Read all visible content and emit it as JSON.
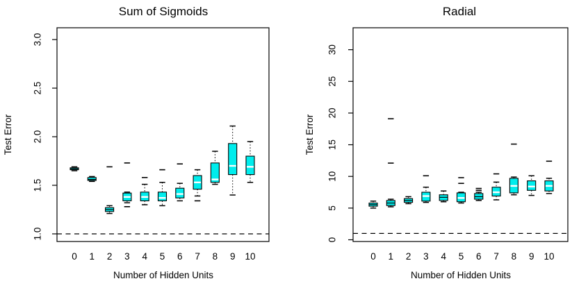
{
  "style": {
    "box_fill": "#00EDED",
    "median_color": "#FFFFFF",
    "line_color": "#000000",
    "background": "#FFFFFF"
  },
  "chart_data": [
    {
      "type": "boxplot",
      "title": "Sum of Sigmoids",
      "xlabel": "Number of Hidden Units",
      "ylabel": "Test Error",
      "x_categories": [
        "0",
        "1",
        "2",
        "3",
        "4",
        "5",
        "6",
        "7",
        "8",
        "9",
        "10"
      ],
      "y_tick_labels": [
        "1.0",
        "1.5",
        "2.0",
        "2.5",
        "3.0"
      ],
      "ylim": [
        0.92,
        3.05
      ],
      "grid": false,
      "legend": "none",
      "reference_line_y": 1.0,
      "reference_line_style": "dashed",
      "boxes": [
        {
          "hidden_units": 0,
          "whisker_low": 1.65,
          "q1": 1.66,
          "median": 1.67,
          "q3": 1.68,
          "whisker_high": 1.69,
          "outliers": []
        },
        {
          "hidden_units": 1,
          "whisker_low": 1.54,
          "q1": 1.55,
          "median": 1.56,
          "q3": 1.58,
          "whisker_high": 1.59,
          "outliers": []
        },
        {
          "hidden_units": 2,
          "whisker_low": 1.21,
          "q1": 1.23,
          "median": 1.25,
          "q3": 1.27,
          "whisker_high": 1.29,
          "outliers": [
            1.69
          ]
        },
        {
          "hidden_units": 3,
          "whisker_low": 1.32,
          "q1": 1.34,
          "median": 1.38,
          "q3": 1.42,
          "whisker_high": 1.43,
          "outliers": [
            1.73,
            1.28
          ]
        },
        {
          "hidden_units": 4,
          "whisker_low": 1.3,
          "q1": 1.34,
          "median": 1.38,
          "q3": 1.43,
          "whisker_high": 1.51,
          "outliers": [
            1.58
          ]
        },
        {
          "hidden_units": 5,
          "whisker_low": 1.29,
          "q1": 1.34,
          "median": 1.37,
          "q3": 1.43,
          "whisker_high": 1.53,
          "outliers": [
            1.66
          ]
        },
        {
          "hidden_units": 6,
          "whisker_low": 1.34,
          "q1": 1.37,
          "median": 1.41,
          "q3": 1.47,
          "whisker_high": 1.52,
          "outliers": [
            1.72
          ]
        },
        {
          "hidden_units": 7,
          "whisker_low": 1.39,
          "q1": 1.46,
          "median": 1.53,
          "q3": 1.6,
          "whisker_high": 1.66,
          "outliers": [
            1.34
          ]
        },
        {
          "hidden_units": 8,
          "whisker_low": 1.51,
          "q1": 1.53,
          "median": 1.56,
          "q3": 1.73,
          "whisker_high": 1.85,
          "outliers": []
        },
        {
          "hidden_units": 9,
          "whisker_low": 1.4,
          "q1": 1.61,
          "median": 1.7,
          "q3": 1.93,
          "whisker_high": 2.11,
          "outliers": []
        },
        {
          "hidden_units": 10,
          "whisker_low": 1.53,
          "q1": 1.61,
          "median": 1.69,
          "q3": 1.8,
          "whisker_high": 1.95,
          "outliers": []
        }
      ]
    },
    {
      "type": "boxplot",
      "title": "Radial",
      "xlabel": "Number of Hidden Units",
      "ylabel": "Test Error",
      "x_categories": [
        "0",
        "1",
        "2",
        "3",
        "4",
        "5",
        "6",
        "7",
        "8",
        "9",
        "10"
      ],
      "y_tick_labels": [
        "0",
        "5",
        "10",
        "15",
        "20",
        "25",
        "30"
      ],
      "ylim": [
        0,
        33.5
      ],
      "grid": false,
      "legend": "none",
      "reference_line_y": 1.0,
      "reference_line_style": "dashed",
      "boxes": [
        {
          "hidden_units": 0,
          "whisker_low": 5.0,
          "q1": 5.3,
          "median": 5.55,
          "q3": 5.8,
          "whisker_high": 6.1,
          "outliers": []
        },
        {
          "hidden_units": 1,
          "whisker_low": 5.2,
          "q1": 5.4,
          "median": 5.8,
          "q3": 6.2,
          "whisker_high": 6.4,
          "outliers": [
            19.1,
            12.1
          ]
        },
        {
          "hidden_units": 2,
          "whisker_low": 5.7,
          "q1": 5.9,
          "median": 6.2,
          "q3": 6.5,
          "whisker_high": 6.8,
          "outliers": []
        },
        {
          "hidden_units": 3,
          "whisker_low": 5.9,
          "q1": 6.1,
          "median": 6.9,
          "q3": 7.5,
          "whisker_high": 8.3,
          "outliers": [
            10.1
          ]
        },
        {
          "hidden_units": 4,
          "whisker_low": 6.0,
          "q1": 6.2,
          "median": 6.7,
          "q3": 7.1,
          "whisker_high": 7.7,
          "outliers": []
        },
        {
          "hidden_units": 5,
          "whisker_low": 5.8,
          "q1": 6.0,
          "median": 6.6,
          "q3": 7.4,
          "whisker_high": 7.5,
          "outliers": [
            9.8,
            8.9
          ]
        },
        {
          "hidden_units": 6,
          "whisker_low": 6.2,
          "q1": 6.4,
          "median": 6.8,
          "q3": 7.3,
          "whisker_high": 7.5,
          "outliers": [
            8.1,
            7.8
          ]
        },
        {
          "hidden_units": 7,
          "whisker_low": 6.3,
          "q1": 6.9,
          "median": 7.5,
          "q3": 8.3,
          "whisker_high": 9.1,
          "outliers": [
            10.4
          ]
        },
        {
          "hidden_units": 8,
          "whisker_low": 7.1,
          "q1": 7.4,
          "median": 8.5,
          "q3": 9.7,
          "whisker_high": 9.9,
          "outliers": [
            15.1
          ]
        },
        {
          "hidden_units": 9,
          "whisker_low": 7.0,
          "q1": 7.8,
          "median": 8.4,
          "q3": 9.3,
          "whisker_high": 10.1,
          "outliers": []
        },
        {
          "hidden_units": 10,
          "whisker_low": 7.3,
          "q1": 7.7,
          "median": 8.5,
          "q3": 9.3,
          "whisker_high": 9.7,
          "outliers": [
            12.4
          ]
        }
      ]
    }
  ]
}
